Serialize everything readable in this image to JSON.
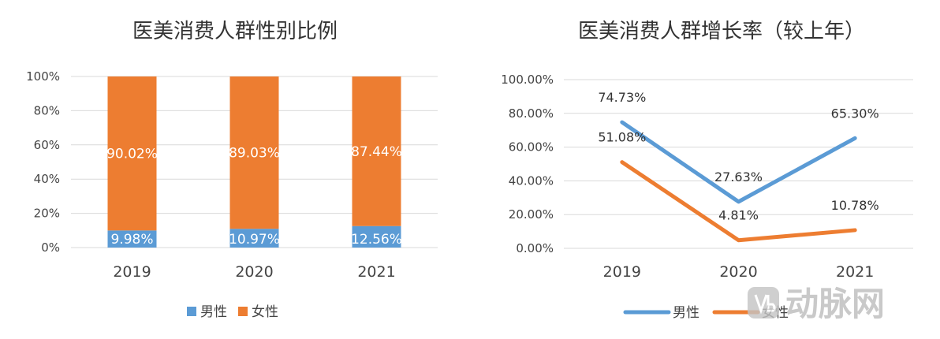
{
  "chart_data": [
    {
      "type": "bar",
      "stacked": true,
      "title": "医美消费人群性别比例",
      "categories": [
        "2019",
        "2020",
        "2021"
      ],
      "series": [
        {
          "name": "男性",
          "values": [
            9.98,
            10.97,
            12.56
          ],
          "labels": [
            "9.98%",
            "10.97%",
            "12.56%"
          ],
          "color": "#5b9bd5"
        },
        {
          "name": "女性",
          "values": [
            90.02,
            89.03,
            87.44
          ],
          "labels": [
            "90.02%",
            "89.03%",
            "87.44%"
          ],
          "color": "#ed7d31"
        }
      ],
      "y_ticks": [
        "0%",
        "20%",
        "40%",
        "60%",
        "80%",
        "100%"
      ],
      "ylim": [
        0,
        100
      ],
      "grid": true,
      "legend": "bottom"
    },
    {
      "type": "line",
      "title": "医美消费人群增长率（较上年）",
      "categories": [
        "2019",
        "2020",
        "2021"
      ],
      "series": [
        {
          "name": "男性",
          "values": [
            74.73,
            27.63,
            65.3
          ],
          "labels": [
            "74.73%",
            "27.63%",
            "65.30%"
          ],
          "color": "#5b9bd5"
        },
        {
          "name": "女性",
          "values": [
            51.08,
            4.81,
            10.78
          ],
          "labels": [
            "51.08%",
            "4.81%",
            "10.78%"
          ],
          "color": "#ed7d31"
        }
      ],
      "y_ticks": [
        "0.00%",
        "20.00%",
        "40.00%",
        "60.00%",
        "80.00%",
        "100.00%"
      ],
      "ylim": [
        0,
        100
      ],
      "grid": true,
      "legend": "bottom"
    }
  ],
  "watermark": {
    "text": "动脉网",
    "icon": "vb-logo-icon"
  }
}
